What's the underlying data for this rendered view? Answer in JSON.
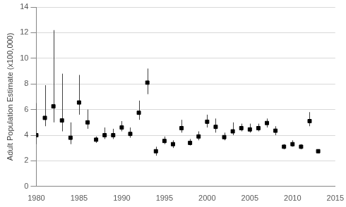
{
  "chart_data": {
    "type": "scatter",
    "y_label": "Adult Population Estimate (x100,000)",
    "x": [
      1980,
      1981,
      1982,
      1983,
      1984,
      1985,
      1986,
      1987,
      1988,
      1989,
      1990,
      1991,
      1992,
      1993,
      1994,
      1995,
      1996,
      1997,
      1998,
      1999,
      2000,
      2001,
      2002,
      2003,
      2004,
      2005,
      2006,
      2007,
      2008,
      2009,
      2010,
      2011,
      2012,
      2013
    ],
    "values": [
      4.0,
      5.35,
      6.25,
      5.15,
      3.8,
      6.55,
      5.0,
      3.65,
      4.0,
      4.0,
      4.6,
      4.1,
      5.75,
      8.1,
      2.75,
      3.55,
      3.3,
      4.55,
      3.4,
      3.9,
      5.05,
      4.65,
      3.85,
      4.3,
      4.55,
      4.45,
      4.55,
      4.95,
      4.35,
      3.1,
      3.3,
      3.1,
      5.1,
      2.75
    ],
    "error_lower": [
      3.3,
      4.7,
      5.0,
      4.3,
      3.3,
      5.6,
      4.5,
      3.4,
      3.7,
      3.7,
      4.3,
      3.8,
      5.2,
      7.2,
      2.4,
      3.3,
      3.0,
      4.2,
      3.2,
      3.6,
      4.6,
      4.2,
      3.6,
      4.0,
      4.3,
      4.2,
      4.3,
      4.6,
      4.0,
      2.9,
      3.1,
      2.9,
      4.7,
      2.6
    ],
    "error_upper": [
      6.5,
      7.9,
      12.2,
      8.8,
      5.0,
      8.7,
      6.0,
      3.9,
      4.6,
      4.5,
      5.1,
      4.6,
      6.7,
      9.2,
      3.1,
      3.9,
      3.6,
      5.2,
      3.7,
      4.3,
      5.6,
      5.3,
      4.2,
      5.0,
      4.9,
      4.9,
      4.9,
      5.3,
      4.7,
      3.3,
      3.6,
      3.3,
      5.8,
      2.9
    ],
    "color": "#000000",
    "marker": "square",
    "xlim": [
      1980,
      2015
    ],
    "xticks": [
      1980,
      1985,
      1990,
      1995,
      2000,
      2005,
      2010,
      2015
    ],
    "ylim": [
      0,
      14
    ],
    "yticks": [
      0,
      2,
      4,
      6,
      8,
      10,
      12,
      14
    ],
    "grid": "y"
  }
}
